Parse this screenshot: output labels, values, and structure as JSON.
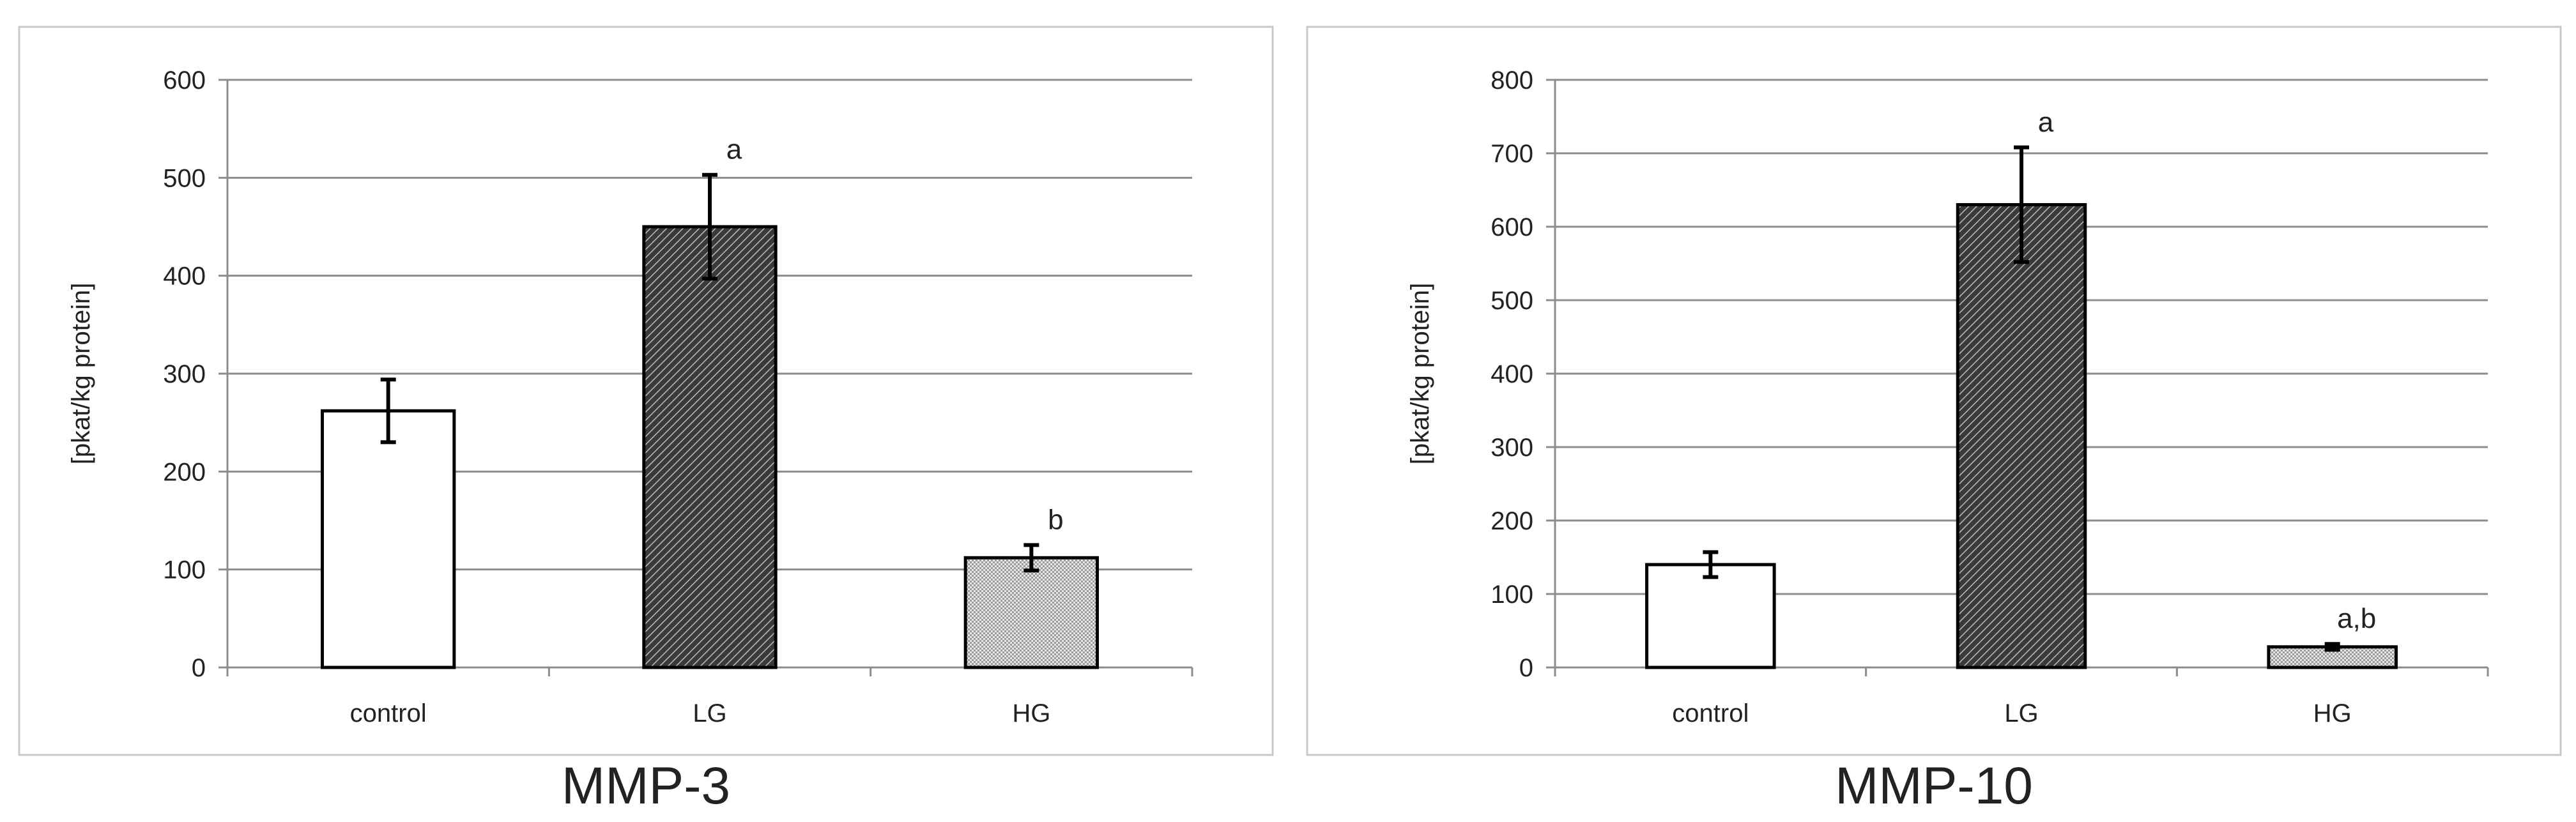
{
  "chart_data": [
    {
      "type": "bar",
      "title": "MMP-3",
      "ylabel": "[pkat/kg protein]",
      "xlabel": "",
      "ylim": [
        0,
        600
      ],
      "yticks": [
        0,
        100,
        200,
        300,
        400,
        500,
        600
      ],
      "categories": [
        "control",
        "LG",
        "HG"
      ],
      "values": [
        262,
        450,
        112
      ],
      "errors": [
        32,
        53,
        13
      ],
      "annotations": [
        "",
        "a",
        "b"
      ],
      "fills": [
        "white",
        "dark-hatch",
        "light-hatch"
      ],
      "grid": true
    },
    {
      "type": "bar",
      "title": "MMP-10",
      "ylabel": "[pkat/kg protein]",
      "xlabel": "",
      "ylim": [
        0,
        800
      ],
      "yticks": [
        0,
        100,
        200,
        300,
        400,
        500,
        600,
        700,
        800
      ],
      "categories": [
        "control",
        "LG",
        "HG"
      ],
      "values": [
        140,
        630,
        28
      ],
      "errors": [
        17,
        78,
        4
      ],
      "annotations": [
        "",
        "a",
        "a,b"
      ],
      "fills": [
        "white",
        "dark-hatch",
        "light-hatch"
      ],
      "grid": true
    }
  ],
  "colors": {
    "frame": "#c8c8c8",
    "grid": "#8c8c8c",
    "bar_stroke": "#000000",
    "text": "#222222"
  }
}
